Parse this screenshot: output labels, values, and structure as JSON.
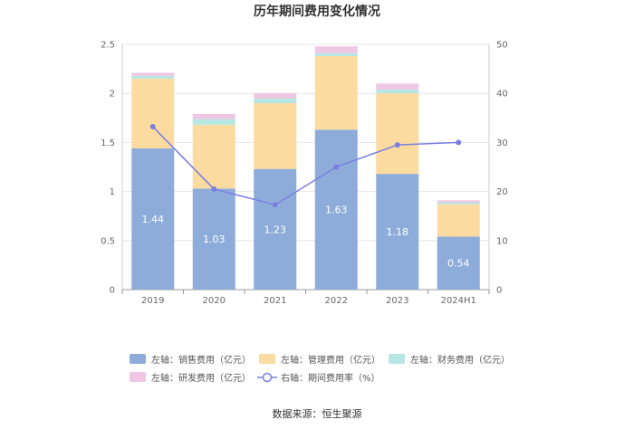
{
  "chart_data": {
    "type": "bar",
    "title": "历年期间费用变化情况",
    "categories": [
      "2019",
      "2020",
      "2021",
      "2022",
      "2023",
      "2024H1"
    ],
    "stacked": true,
    "series": [
      {
        "name": "左轴：销售费用（亿元）",
        "axis": "left",
        "color": "#8eacd9",
        "values": [
          1.44,
          1.03,
          1.23,
          1.63,
          1.18,
          0.54
        ],
        "labels": [
          "1.44",
          "1.03",
          "1.23",
          "1.63",
          "1.18",
          "0.54"
        ]
      },
      {
        "name": "左轴：管理费用（亿元）",
        "axis": "left",
        "color": "#fcdba0",
        "values": [
          0.71,
          0.65,
          0.67,
          0.75,
          0.82,
          0.33
        ]
      },
      {
        "name": "左轴：财务费用（亿元）",
        "axis": "left",
        "color": "#b8e6e3",
        "values": [
          0.03,
          0.06,
          0.05,
          0.03,
          0.04,
          0.02
        ]
      },
      {
        "name": "左轴：研发费用（亿元）",
        "axis": "left",
        "color": "#efc6e3",
        "values": [
          0.03,
          0.05,
          0.05,
          0.07,
          0.06,
          0.02
        ]
      }
    ],
    "line": {
      "name": "右轴：期间费用率（%）",
      "axis": "right",
      "color": "#7b7fe0",
      "values": [
        33.2,
        20.5,
        17.3,
        25.0,
        29.5,
        30.0
      ]
    },
    "y_left": {
      "min": 0,
      "max": 2.5,
      "ticks": [
        "0",
        "0.5",
        "1",
        "1.5",
        "2",
        "2.5"
      ],
      "tick_values": [
        0,
        0.5,
        1,
        1.5,
        2,
        2.5
      ]
    },
    "y_right": {
      "min": 0,
      "max": 50,
      "ticks": [
        "0",
        "10",
        "20",
        "30",
        "40",
        "50"
      ],
      "tick_values": [
        0,
        10,
        20,
        30,
        40,
        50
      ]
    },
    "legend_position": "bottom",
    "source": "数据来源：恒生聚源"
  }
}
